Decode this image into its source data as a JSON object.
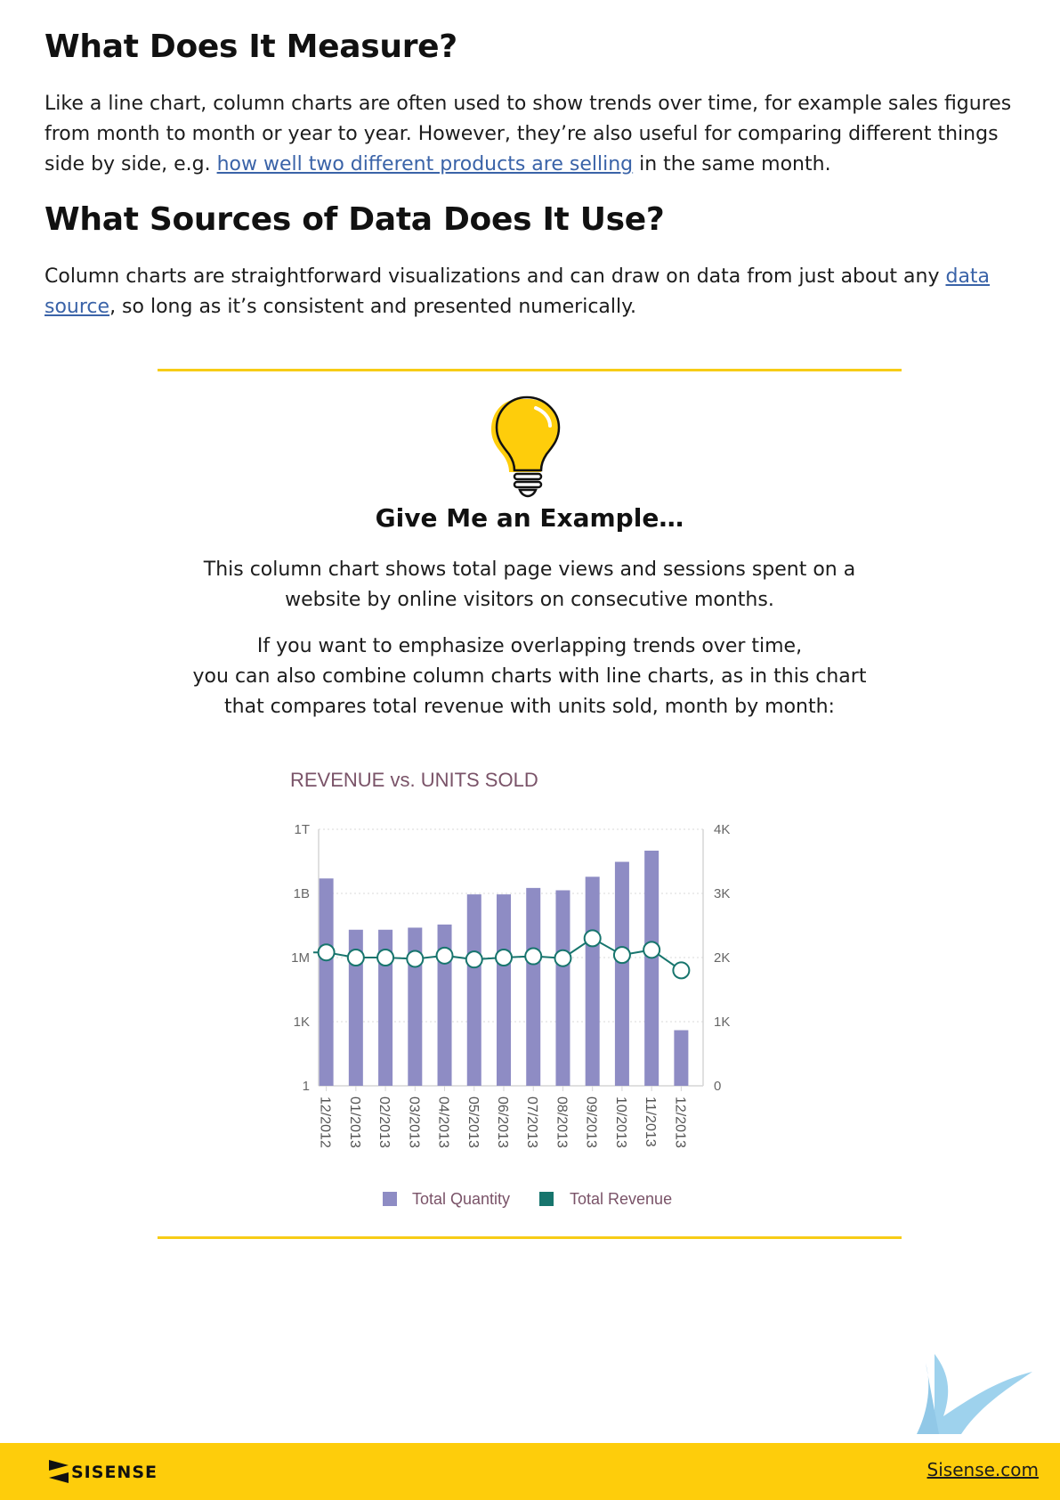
{
  "section1": {
    "heading": "What Does It Measure?",
    "para_line1": "Like a line chart, column charts are often used to show trends over time, for example sales figures from month to month or year to year. However, they’re also useful for comparing different things side by side, e.g. ",
    "para_link": "how well two different products are selling",
    "para_line2": " in the same month."
  },
  "section2": {
    "heading": "What Sources of Data Does It Use?",
    "para_start": "Column charts are straightforward visualizations and can draw on data from just about any ",
    "para_link": "data source",
    "para_end": ", so long as it’s consistent and presented numerically."
  },
  "example": {
    "icon": "lightbulb-icon",
    "title": "Give Me an Example…",
    "desc1": "This column chart shows total page views and sessions spent on a website by online visitors on consecutive months.",
    "desc2_line1": "If you want to emphasize overlapping trends over time,",
    "desc2_line2": "you can also combine column charts with line charts, as in this chart that compares total revenue with units sold, month by month:"
  },
  "colors": {
    "accent_yellow": "#f7cc16",
    "bar_color": "#8e8cc4",
    "line_color": "#17756d",
    "chart_title_color": "#7a5368",
    "link_color": "#3a63a8"
  },
  "chart_data": {
    "type": "bar",
    "title": "REVENUE vs. UNITS SOLD",
    "categories": [
      "12/2012",
      "01/2013",
      "02/2013",
      "03/2013",
      "04/2013",
      "05/2013",
      "06/2013",
      "07/2013",
      "08/2013",
      "09/2013",
      "10/2013",
      "11/2013",
      "12/2013"
    ],
    "y_left_scale": "log",
    "y_left_ticks": [
      "1T",
      "1B",
      "1M",
      "1K",
      "1"
    ],
    "y_left_tick_values": [
      1000000000000.0,
      1000000000.0,
      1000000.0,
      1000.0,
      1
    ],
    "y_right_ticks": [
      "4K",
      "3K",
      "2K",
      "1K",
      "0"
    ],
    "y_right_tick_values": [
      4000,
      3000,
      2000,
      1000,
      0
    ],
    "ylim_left": [
      1,
      1000000000000.0
    ],
    "ylim_right": [
      0,
      4000
    ],
    "grid": "dotted horizontal",
    "legend_position": "bottom",
    "series": [
      {
        "name": "Total Quantity",
        "type": "bar",
        "axis": "left",
        "values": [
          5000000000.0,
          20000000.0,
          20000000.0,
          25000000.0,
          35000000.0,
          900000000.0,
          900000000.0,
          1800000000.0,
          1400000000.0,
          6000000000.0,
          30000000000.0,
          100000000000.0,
          400
        ]
      },
      {
        "name": "Total Revenue",
        "type": "line",
        "axis": "right",
        "values": [
          2080,
          2000,
          2000,
          1980,
          2030,
          1970,
          2000,
          2020,
          1990,
          2300,
          2040,
          2120,
          1800
        ]
      }
    ]
  },
  "footer": {
    "brand": "SISENSE",
    "link": "Sisense.com"
  }
}
